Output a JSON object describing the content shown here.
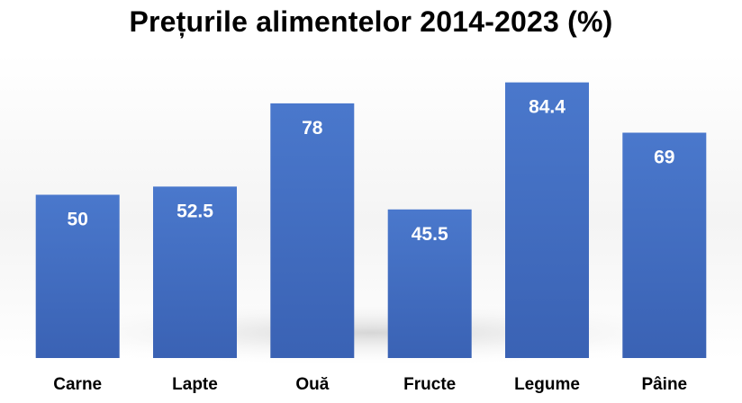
{
  "chart_data": {
    "type": "bar",
    "title": "Prețurile alimentelor 2014-2023 (%)",
    "categories": [
      "Carne",
      "Lapte",
      "Ouă",
      "Fructe",
      "Legume",
      "Pâine"
    ],
    "values": [
      50,
      52.5,
      78,
      45.5,
      84.4,
      69
    ],
    "data_labels": [
      "50",
      "52.5",
      "78",
      "45.5",
      "84.4",
      "69"
    ],
    "xlabel": "",
    "ylabel": "",
    "ylim": [
      0,
      90
    ],
    "grid": false,
    "legend": "none",
    "value_axis_visible": false,
    "colors": {
      "bar_top": "#4a78cc",
      "bar_bottom": "#3a62b4",
      "label_inside": "#ffffff",
      "category_text": "#000000"
    }
  }
}
